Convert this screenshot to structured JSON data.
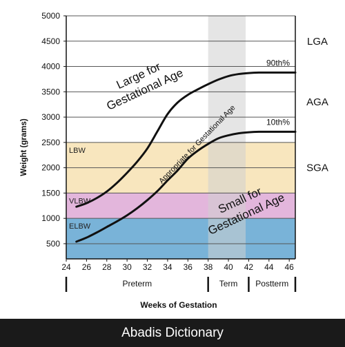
{
  "chart_data": {
    "type": "line",
    "xlabel": "Weeks of Gestation",
    "ylabel": "Weight (grams)",
    "xlim": [
      24,
      46.6
    ],
    "ylim": [
      200,
      5000
    ],
    "x_ticks": [
      "24",
      "26",
      "28",
      "30",
      "32",
      "34",
      "36",
      "38",
      "40",
      "42",
      "44",
      "46"
    ],
    "y_ticks": [
      "500",
      "1000",
      "1500",
      "2000",
      "2500",
      "3000",
      "3500",
      "4000",
      "4500",
      "5000"
    ],
    "grid": "horizontal",
    "term_band": {
      "from": 38,
      "to": 41.7
    },
    "weight_bands": [
      {
        "label": "LBW",
        "from": 1500,
        "to": 2500,
        "color": "#f8e6be"
      },
      {
        "label": "VLBW",
        "from": 1000,
        "to": 1500,
        "color": "#e3b6dc"
      },
      {
        "label": "ELBW",
        "from": 200,
        "to": 1000,
        "color": "#79b3d8"
      }
    ],
    "series": [
      {
        "name": "90th%",
        "x": [
          25,
          26,
          27,
          28,
          29,
          30,
          31,
          32,
          33,
          34,
          35,
          36,
          37,
          38,
          39,
          40,
          41,
          42,
          43,
          44,
          45,
          46.6
        ],
        "values": [
          1230,
          1300,
          1400,
          1530,
          1700,
          1900,
          2120,
          2380,
          2720,
          3060,
          3290,
          3440,
          3550,
          3650,
          3740,
          3810,
          3850,
          3870,
          3880,
          3880,
          3880,
          3880
        ]
      },
      {
        "name": "10th%",
        "x": [
          25,
          26,
          27,
          28,
          29,
          30,
          31,
          32,
          33,
          34,
          35,
          36,
          37,
          38,
          39,
          40,
          41,
          42,
          43,
          44,
          45,
          46.6
        ],
        "values": [
          540,
          620,
          720,
          830,
          940,
          1060,
          1200,
          1360,
          1540,
          1750,
          1950,
          2180,
          2340,
          2470,
          2580,
          2640,
          2680,
          2700,
          2710,
          2710,
          2710,
          2710
        ]
      }
    ],
    "region_labels": {
      "large": [
        "Large for",
        "Gestational Age"
      ],
      "appropriate": "Appropriate for Gestational Age",
      "small": [
        "Small for",
        "Gestational Age"
      ]
    },
    "right_labels": [
      "LGA",
      "AGA",
      "SGA"
    ],
    "periods": [
      {
        "label": "Preterm",
        "from": 24,
        "to": 38
      },
      {
        "label": "Term",
        "from": 38,
        "to": 42
      },
      {
        "label": "Postterm",
        "from": 42,
        "to": 46.6
      }
    ]
  },
  "footer": {
    "text": "Abadis Dictionary",
    "background": "#1a1a1a"
  }
}
